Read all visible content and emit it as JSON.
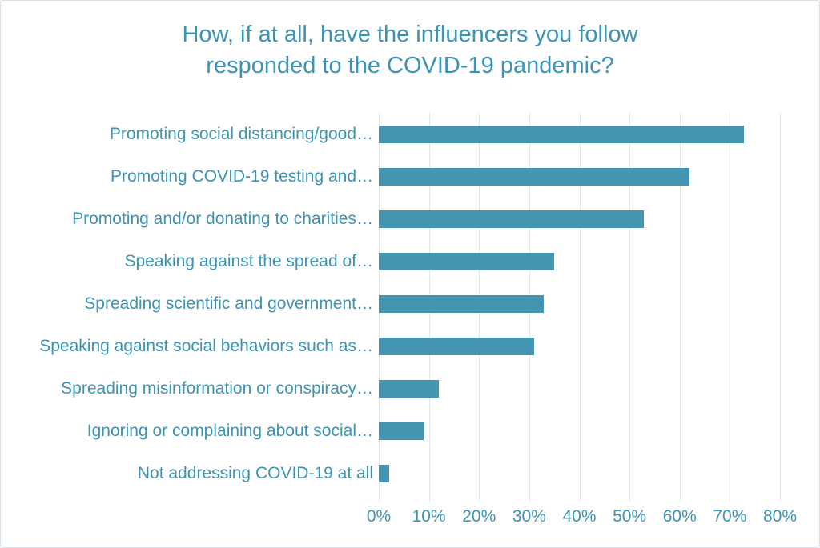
{
  "title_lines": [
    "How, if at all, have the influencers you follow",
    "responded to the COVID-19 pandemic?"
  ],
  "chart_data": {
    "type": "bar",
    "orientation": "horizontal",
    "title": "How, if at all, have the influencers you follow responded to the COVID-19 pandemic?",
    "categories": [
      "Promoting social distancing/good…",
      "Promoting COVID-19 testing and…",
      "Promoting and/or donating to charities…",
      "Speaking against the spread of…",
      "Spreading scientific and government…",
      "Speaking against social behaviors such as…",
      "Spreading misinformation or conspiracy…",
      "Ignoring or complaining about social…",
      "Not addressing COVID-19 at all"
    ],
    "values": [
      73,
      62,
      53,
      35,
      33,
      31,
      12,
      9,
      2
    ],
    "unit": "%",
    "xlabel": "",
    "ylabel": "",
    "xlim": [
      0,
      80
    ],
    "x_ticks": [
      0,
      10,
      20,
      30,
      40,
      50,
      60,
      70,
      80
    ],
    "x_tick_labels": [
      "0%",
      "10%",
      "20%",
      "30%",
      "40%",
      "50%",
      "60%",
      "70%",
      "80%"
    ],
    "grid": true,
    "legend": false,
    "colors": {
      "bar": "#4395B2",
      "text": "#3C94B4",
      "gridline": "#DCE7EE",
      "border": "#D9E1E6",
      "background": "#FFFFFF"
    }
  }
}
